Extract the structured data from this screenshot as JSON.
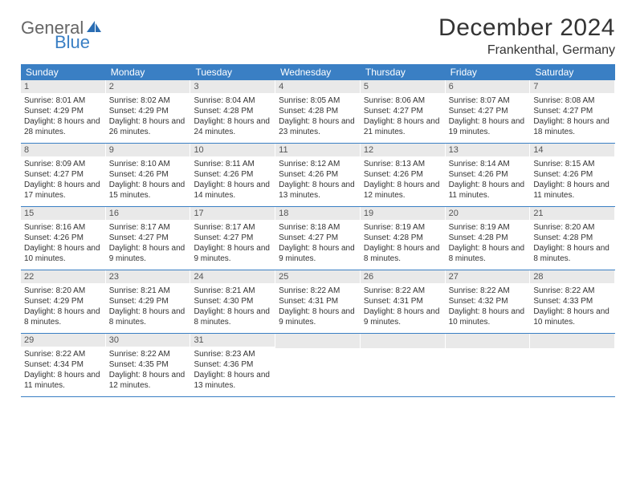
{
  "brand": {
    "general": "General",
    "blue": "Blue",
    "logo_color": "#2a6db3"
  },
  "title": "December 2024",
  "location": "Frankenthal, Germany",
  "colors": {
    "header_bg": "#3a7fc4",
    "header_text": "#ffffff",
    "daynum_bg": "#e9e9e9",
    "week_border": "#3a7fc4",
    "text": "#333333"
  },
  "fonts": {
    "title_size": 30,
    "location_size": 16,
    "weekday_size": 12,
    "daynum_size": 11,
    "body_size": 10
  },
  "weekdays": [
    "Sunday",
    "Monday",
    "Tuesday",
    "Wednesday",
    "Thursday",
    "Friday",
    "Saturday"
  ],
  "weeks": [
    [
      {
        "n": "1",
        "sunrise": "8:01 AM",
        "sunset": "4:29 PM",
        "daylight": "8 hours and 28 minutes."
      },
      {
        "n": "2",
        "sunrise": "8:02 AM",
        "sunset": "4:29 PM",
        "daylight": "8 hours and 26 minutes."
      },
      {
        "n": "3",
        "sunrise": "8:04 AM",
        "sunset": "4:28 PM",
        "daylight": "8 hours and 24 minutes."
      },
      {
        "n": "4",
        "sunrise": "8:05 AM",
        "sunset": "4:28 PM",
        "daylight": "8 hours and 23 minutes."
      },
      {
        "n": "5",
        "sunrise": "8:06 AM",
        "sunset": "4:27 PM",
        "daylight": "8 hours and 21 minutes."
      },
      {
        "n": "6",
        "sunrise": "8:07 AM",
        "sunset": "4:27 PM",
        "daylight": "8 hours and 19 minutes."
      },
      {
        "n": "7",
        "sunrise": "8:08 AM",
        "sunset": "4:27 PM",
        "daylight": "8 hours and 18 minutes."
      }
    ],
    [
      {
        "n": "8",
        "sunrise": "8:09 AM",
        "sunset": "4:27 PM",
        "daylight": "8 hours and 17 minutes."
      },
      {
        "n": "9",
        "sunrise": "8:10 AM",
        "sunset": "4:26 PM",
        "daylight": "8 hours and 15 minutes."
      },
      {
        "n": "10",
        "sunrise": "8:11 AM",
        "sunset": "4:26 PM",
        "daylight": "8 hours and 14 minutes."
      },
      {
        "n": "11",
        "sunrise": "8:12 AM",
        "sunset": "4:26 PM",
        "daylight": "8 hours and 13 minutes."
      },
      {
        "n": "12",
        "sunrise": "8:13 AM",
        "sunset": "4:26 PM",
        "daylight": "8 hours and 12 minutes."
      },
      {
        "n": "13",
        "sunrise": "8:14 AM",
        "sunset": "4:26 PM",
        "daylight": "8 hours and 11 minutes."
      },
      {
        "n": "14",
        "sunrise": "8:15 AM",
        "sunset": "4:26 PM",
        "daylight": "8 hours and 11 minutes."
      }
    ],
    [
      {
        "n": "15",
        "sunrise": "8:16 AM",
        "sunset": "4:26 PM",
        "daylight": "8 hours and 10 minutes."
      },
      {
        "n": "16",
        "sunrise": "8:17 AM",
        "sunset": "4:27 PM",
        "daylight": "8 hours and 9 minutes."
      },
      {
        "n": "17",
        "sunrise": "8:17 AM",
        "sunset": "4:27 PM",
        "daylight": "8 hours and 9 minutes."
      },
      {
        "n": "18",
        "sunrise": "8:18 AM",
        "sunset": "4:27 PM",
        "daylight": "8 hours and 9 minutes."
      },
      {
        "n": "19",
        "sunrise": "8:19 AM",
        "sunset": "4:28 PM",
        "daylight": "8 hours and 8 minutes."
      },
      {
        "n": "20",
        "sunrise": "8:19 AM",
        "sunset": "4:28 PM",
        "daylight": "8 hours and 8 minutes."
      },
      {
        "n": "21",
        "sunrise": "8:20 AM",
        "sunset": "4:28 PM",
        "daylight": "8 hours and 8 minutes."
      }
    ],
    [
      {
        "n": "22",
        "sunrise": "8:20 AM",
        "sunset": "4:29 PM",
        "daylight": "8 hours and 8 minutes."
      },
      {
        "n": "23",
        "sunrise": "8:21 AM",
        "sunset": "4:29 PM",
        "daylight": "8 hours and 8 minutes."
      },
      {
        "n": "24",
        "sunrise": "8:21 AM",
        "sunset": "4:30 PM",
        "daylight": "8 hours and 8 minutes."
      },
      {
        "n": "25",
        "sunrise": "8:22 AM",
        "sunset": "4:31 PM",
        "daylight": "8 hours and 9 minutes."
      },
      {
        "n": "26",
        "sunrise": "8:22 AM",
        "sunset": "4:31 PM",
        "daylight": "8 hours and 9 minutes."
      },
      {
        "n": "27",
        "sunrise": "8:22 AM",
        "sunset": "4:32 PM",
        "daylight": "8 hours and 10 minutes."
      },
      {
        "n": "28",
        "sunrise": "8:22 AM",
        "sunset": "4:33 PM",
        "daylight": "8 hours and 10 minutes."
      }
    ],
    [
      {
        "n": "29",
        "sunrise": "8:22 AM",
        "sunset": "4:34 PM",
        "daylight": "8 hours and 11 minutes."
      },
      {
        "n": "30",
        "sunrise": "8:22 AM",
        "sunset": "4:35 PM",
        "daylight": "8 hours and 12 minutes."
      },
      {
        "n": "31",
        "sunrise": "8:23 AM",
        "sunset": "4:36 PM",
        "daylight": "8 hours and 13 minutes."
      },
      {
        "empty": true
      },
      {
        "empty": true
      },
      {
        "empty": true
      },
      {
        "empty": true
      }
    ]
  ]
}
